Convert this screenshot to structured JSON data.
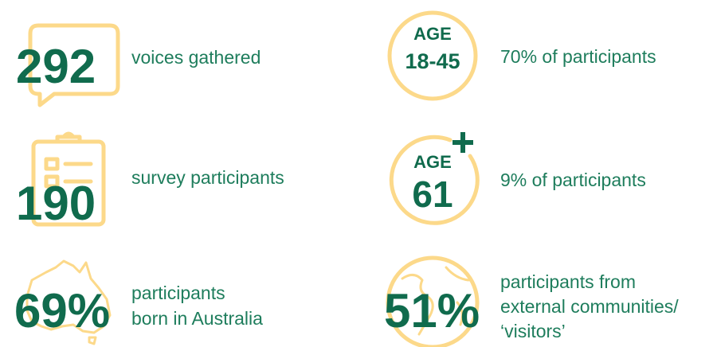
{
  "stats": {
    "left": [
      {
        "value": "292",
        "label": [
          "voices gathered"
        ]
      },
      {
        "value": "190",
        "label": [
          "survey participants"
        ]
      },
      {
        "value": "69%",
        "label": [
          "participants",
          "born in Australia"
        ]
      }
    ],
    "right": [
      {
        "badge": [
          "AGE",
          "18-45"
        ],
        "label": [
          "70% of participants"
        ]
      },
      {
        "badge": [
          "AGE",
          "61"
        ],
        "label": [
          "9% of participants"
        ]
      },
      {
        "value": "51%",
        "label": [
          "participants from",
          "external communities/",
          "‘visitors’"
        ]
      }
    ]
  }
}
